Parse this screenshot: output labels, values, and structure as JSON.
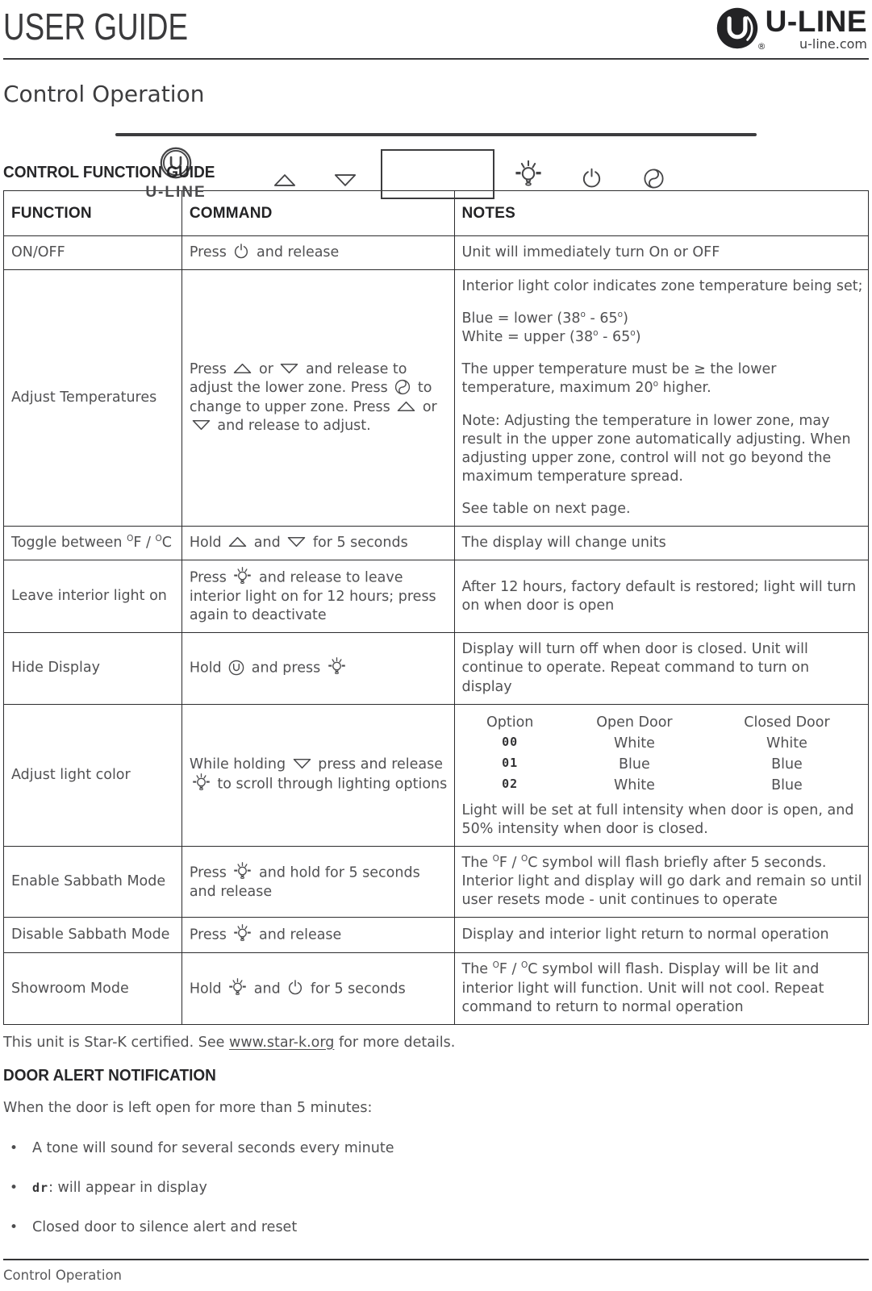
{
  "header": {
    "title": "USER GUIDE",
    "brand_wordmark": "U-LINE",
    "brand_site": "u-line.com",
    "registered_mark": "®"
  },
  "section": {
    "title": "Control Operation"
  },
  "panel": {
    "logo_text": "U-LINE"
  },
  "guide": {
    "heading": "CONTROL FUNCTION GUIDE",
    "columns": [
      "FUNCTION",
      "COMMAND",
      "NOTES"
    ],
    "rows": [
      {
        "function": [
          {
            "t": "ON/OFF"
          }
        ],
        "command": [
          {
            "t": "Press "
          },
          {
            "i": "power-icon"
          },
          {
            "t": " and release"
          }
        ],
        "notes": [
          [
            {
              "t": "Unit will immediately turn On or OFF"
            }
          ]
        ]
      },
      {
        "function": [
          {
            "t": "Adjust Temperatures"
          }
        ],
        "command": [
          {
            "t": "Press "
          },
          {
            "i": "up-arrow-icon"
          },
          {
            "t": " or "
          },
          {
            "i": "down-arrow-icon"
          },
          {
            "t": " and release to adjust the lower zone. Press "
          },
          {
            "i": "zone-icon"
          },
          {
            "t": " to change to upper zone. Press "
          },
          {
            "i": "up-arrow-icon"
          },
          {
            "t": " or "
          },
          {
            "i": "down-arrow-icon"
          },
          {
            "t": " and release to adjust."
          }
        ],
        "notes": [
          [
            {
              "t": "Interior light color indicates zone temperature being set;"
            }
          ],
          [
            {
              "t": "Blue = lower (38"
            },
            {
              "sup": "o"
            },
            {
              "t": " - 65"
            },
            {
              "sup": "o"
            },
            {
              "t": ")"
            },
            {
              "br": true
            },
            {
              "t": "White = upper (38"
            },
            {
              "sup": "o"
            },
            {
              "t": " - 65"
            },
            {
              "sup": "o"
            },
            {
              "t": ")"
            }
          ],
          [
            {
              "t": "The upper temperature must be ≥ the lower temperature, maximum 20"
            },
            {
              "sup": "o"
            },
            {
              "t": " higher."
            }
          ],
          [
            {
              "t": "Note: Adjusting the temperature in lower zone, may result in the upper zone automatically adjusting. When adjusting upper zone, control will not go beyond the maximum temperature spread."
            }
          ],
          [
            {
              "t": "See table on next page."
            }
          ]
        ]
      },
      {
        "function": [
          {
            "t": "Toggle between "
          },
          {
            "sup": "O"
          },
          {
            "t": "F / "
          },
          {
            "sup": "O"
          },
          {
            "t": "C"
          }
        ],
        "command": [
          {
            "t": "Hold "
          },
          {
            "i": "up-arrow-icon"
          },
          {
            "t": " and "
          },
          {
            "i": "down-arrow-icon"
          },
          {
            "t": " for 5 seconds"
          }
        ],
        "notes": [
          [
            {
              "t": "The display will change units"
            }
          ]
        ]
      },
      {
        "function": [
          {
            "t": "Leave interior light on"
          }
        ],
        "command": [
          {
            "t": "Press "
          },
          {
            "i": "bulb-icon"
          },
          {
            "t": " and release to leave interior light on for 12 hours; press again to deactivate"
          }
        ],
        "notes": [
          [
            {
              "t": "After 12 hours, factory default is restored; light will turn on when door is open"
            }
          ]
        ]
      },
      {
        "function": [
          {
            "t": "Hide Display"
          }
        ],
        "command": [
          {
            "t": "Hold "
          },
          {
            "i": "uline-button-icon"
          },
          {
            "t": " and press "
          },
          {
            "i": "bulb-icon"
          }
        ],
        "notes": [
          [
            {
              "t": "Display will turn off when door is closed. Unit will continue to operate. Repeat command to turn on display"
            }
          ]
        ]
      },
      {
        "function": [
          {
            "t": "Adjust light color"
          }
        ],
        "command": [
          {
            "t": "While holding "
          },
          {
            "i": "down-arrow-icon"
          },
          {
            "t": " press and release "
          },
          {
            "i": "bulb-icon"
          },
          {
            "t": " to scroll through lighting options"
          }
        ],
        "options": {
          "headers": [
            "Option",
            "Open Door",
            "Closed Door"
          ],
          "rows": [
            {
              "code": "00",
              "open": "White",
              "closed": "White"
            },
            {
              "code": "01",
              "open": "Blue",
              "closed": "Blue"
            },
            {
              "code": "02",
              "open": "White",
              "closed": "Blue"
            }
          ]
        },
        "notes": [
          [
            {
              "t": "Light will be set at full intensity when door is open, and 50% intensity when door is closed."
            }
          ]
        ]
      },
      {
        "function": [
          {
            "t": "Enable Sabbath Mode"
          }
        ],
        "command": [
          {
            "t": "Press "
          },
          {
            "i": "bulb-icon"
          },
          {
            "t": " and hold for 5 seconds and release"
          }
        ],
        "notes": [
          [
            {
              "t": "The "
            },
            {
              "sup": "O"
            },
            {
              "t": "F / "
            },
            {
              "sup": "O"
            },
            {
              "t": "C symbol will flash briefly after 5 seconds. Interior light and display will go dark and remain so until user resets mode - unit continues to operate"
            }
          ]
        ]
      },
      {
        "function": [
          {
            "t": "Disable Sabbath Mode"
          }
        ],
        "command": [
          {
            "t": "Press "
          },
          {
            "i": "bulb-icon"
          },
          {
            "t": " and release"
          }
        ],
        "notes": [
          [
            {
              "t": "Display and interior light return to normal operation"
            }
          ]
        ]
      },
      {
        "function": [
          {
            "t": "Showroom Mode"
          }
        ],
        "command": [
          {
            "t": "Hold "
          },
          {
            "i": "bulb-icon"
          },
          {
            "t": " and "
          },
          {
            "i": "power-icon"
          },
          {
            "t": " for 5 seconds"
          }
        ],
        "notes": [
          [
            {
              "t": "The "
            },
            {
              "sup": "O"
            },
            {
              "t": "F / "
            },
            {
              "sup": "O"
            },
            {
              "t": "C symbol will flash. Display will be lit and interior light will function. Unit will not cool. Repeat command to return to normal operation"
            }
          ]
        ]
      }
    ]
  },
  "stark_line": [
    {
      "t": "This unit is Star-K certified. See "
    },
    {
      "link": "www.star-k.org"
    },
    {
      "t": " for more details."
    }
  ],
  "door_alert": {
    "heading": "DOOR ALERT NOTIFICATION",
    "intro": "When the door is left open for more than 5 minutes:",
    "bullets": [
      [
        {
          "t": "A tone will sound for several seconds every minute"
        }
      ],
      [
        {
          "seg": "dr"
        },
        {
          "t": ": will appear in display"
        }
      ],
      [
        {
          "t": "Closed door to silence alert and reset"
        }
      ]
    ]
  },
  "footer": {
    "label": "Control Operation"
  }
}
